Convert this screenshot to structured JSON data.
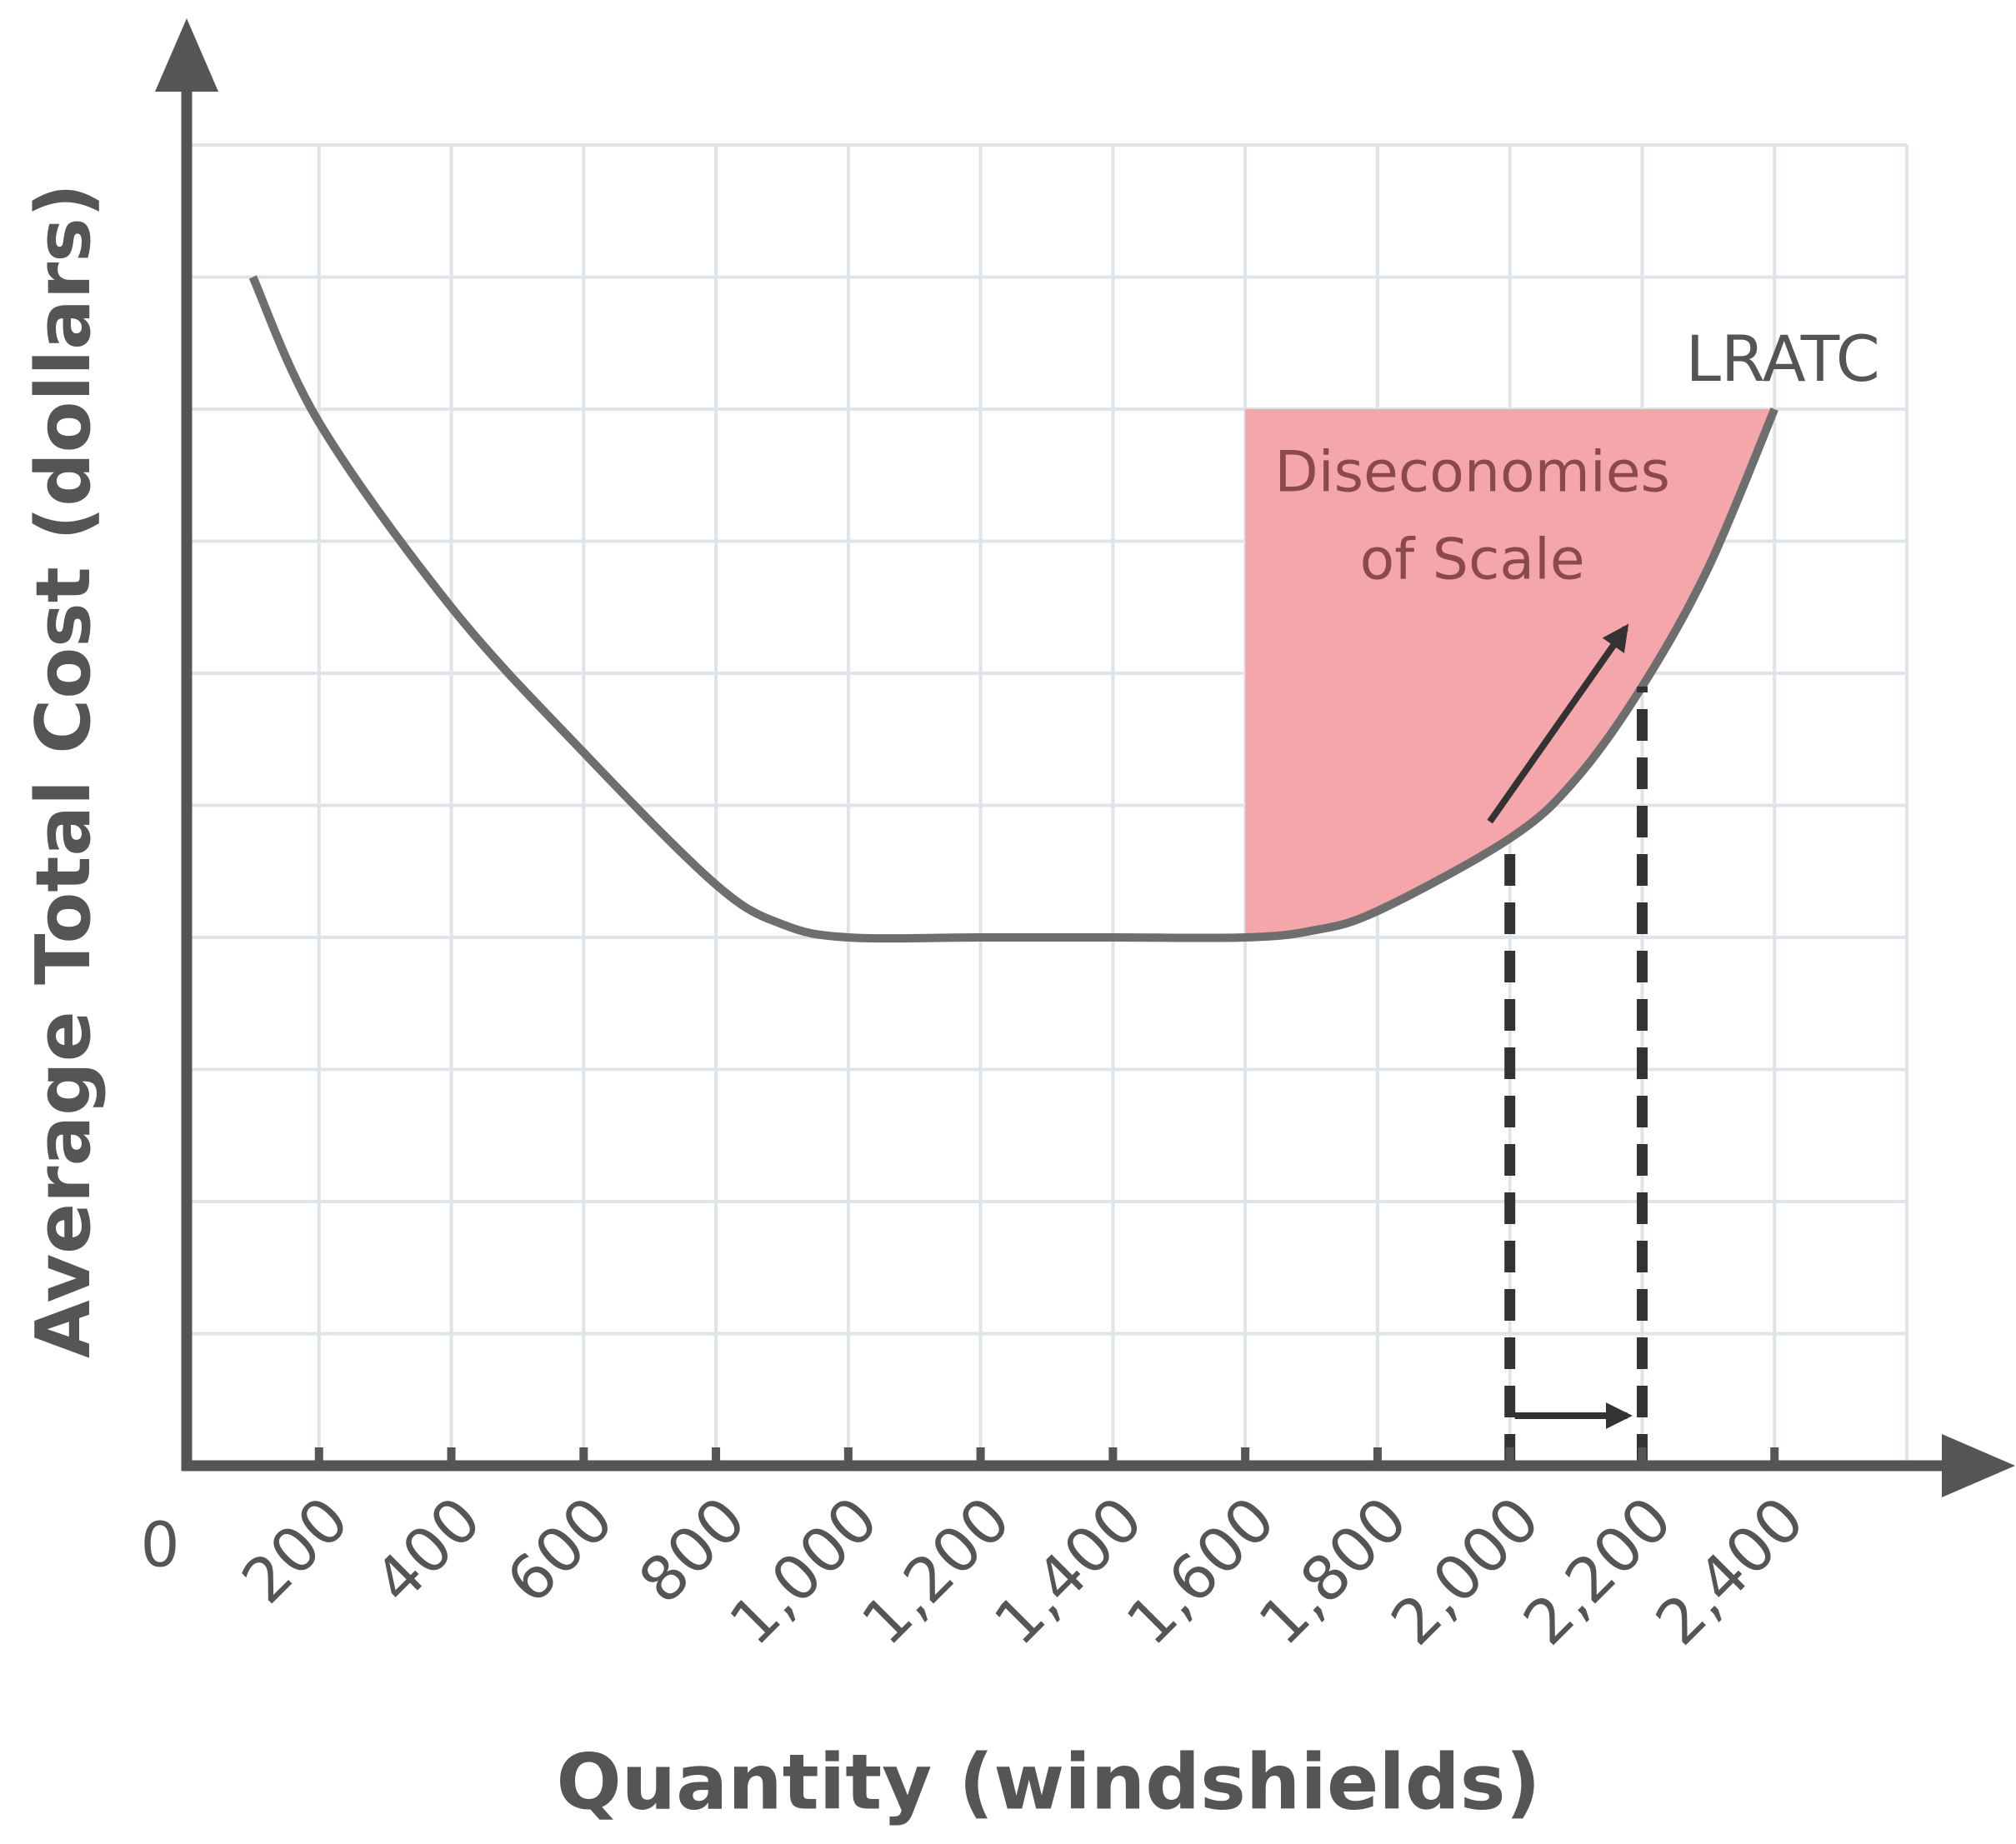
{
  "chart_data": {
    "type": "line",
    "x_label": "Quantity (windshields)",
    "y_label": "Average Total Cost (dollars)",
    "xlim": [
      0,
      2600
    ],
    "ylim": [
      0,
      10
    ],
    "xticks": [
      0,
      200,
      400,
      600,
      800,
      {
        "value": 1000,
        "label": "1,000"
      },
      {
        "value": 1200,
        "label": "1,200"
      },
      {
        "value": 1400,
        "label": "1,400"
      },
      {
        "value": 1600,
        "label": "1,600"
      },
      {
        "value": 1800,
        "label": "1,800"
      },
      {
        "value": 2000,
        "label": "2,000"
      },
      {
        "value": 2200,
        "label": "2,200"
      },
      {
        "value": 2400,
        "label": "2,400"
      }
    ],
    "yticks": [
      0,
      1,
      2,
      3,
      4,
      5,
      6,
      7,
      8,
      9,
      10
    ],
    "show_ytick_labels": false,
    "grid": true,
    "series": [
      {
        "name": "LRATC",
        "color": "#6e6e6e",
        "x": [
          100,
          200,
          400,
          600,
          800,
          900,
          1000,
          1200,
          1400,
          1600,
          1700,
          1800,
          2000,
          2100,
          2200,
          2300,
          2400
        ],
        "values": [
          9.0,
          7.9,
          6.5,
          5.4,
          4.4,
          4.1,
          4.0,
          4.0,
          4.0,
          4.0,
          4.05,
          4.2,
          4.75,
          5.2,
          5.9,
          6.8,
          8.0
        ]
      }
    ],
    "shaded_region": {
      "label": [
        "Diseconomies",
        "of Scale"
      ],
      "xlim": [
        1600,
        2400
      ],
      "top": 8,
      "color": "#f4a6aa"
    },
    "reference_x": [
      2000,
      2200
    ]
  }
}
